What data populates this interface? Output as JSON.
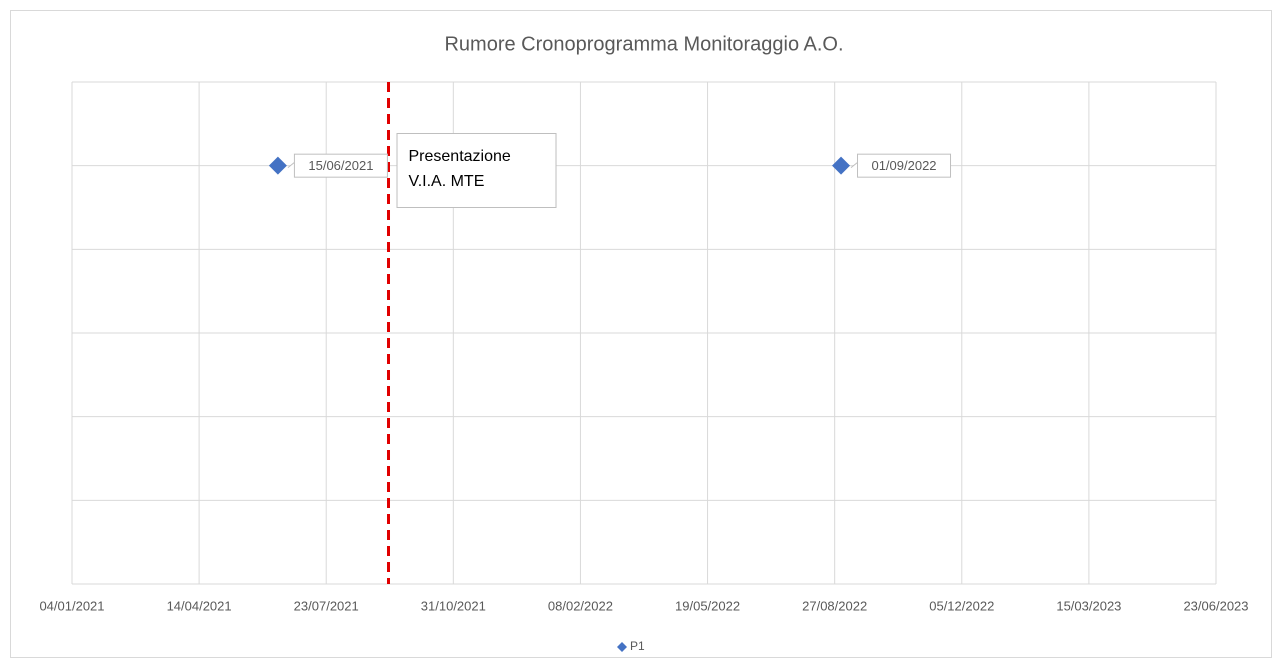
{
  "chart_data": {
    "type": "scatter",
    "title": "Rumore Cronoprogramma Monitoraggio A.O.",
    "series": [
      {
        "name": "P1",
        "color": "#4472c4",
        "x": [
          "15/06/2021",
          "01/09/2022"
        ],
        "values": [
          5,
          5
        ]
      }
    ],
    "xlim": [
      "04/01/2021",
      "23/06/2023"
    ],
    "xticks": [
      "04/01/2021",
      "14/04/2021",
      "23/07/2021",
      "31/10/2021",
      "08/02/2022",
      "19/05/2022",
      "27/08/2022",
      "05/12/2022",
      "15/03/2023",
      "23/06/2023"
    ],
    "ylim": [
      0,
      6
    ],
    "yticks": [
      0,
      1,
      2,
      3,
      4,
      5,
      6
    ],
    "ytick_labels": false,
    "grid": true,
    "annotations": [
      {
        "x": "10/09/2021",
        "lines": [
          "Presentazione",
          "V.I.A. MTE"
        ],
        "color": "#e00000"
      }
    ],
    "legend": "bottom"
  }
}
